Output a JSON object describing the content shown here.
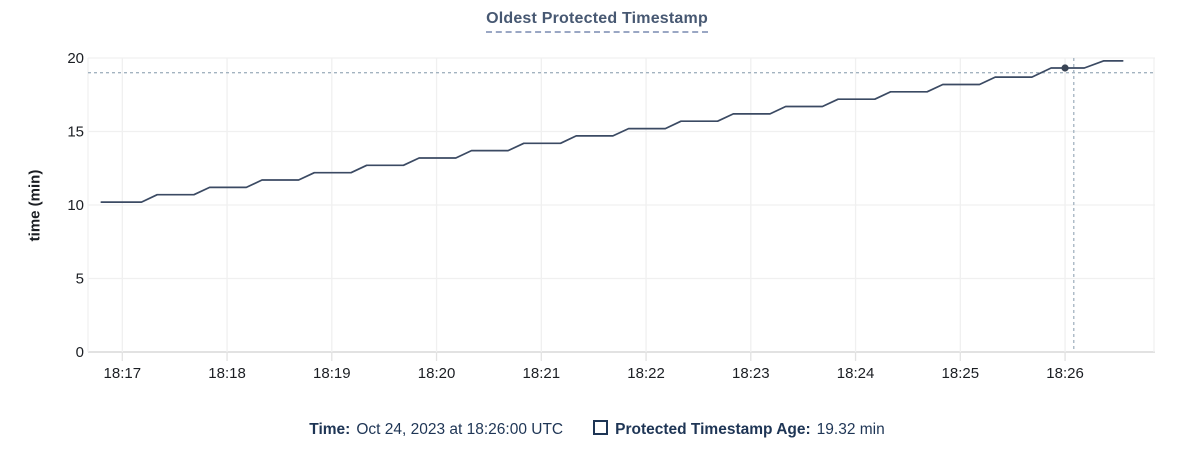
{
  "title": "Oldest Protected Timestamp",
  "tooltip": {
    "time_label": "Time:",
    "time_value": "Oct 24, 2023 at 18:26:00 UTC",
    "series_label": "Protected Timestamp Age:",
    "series_value": "19.32 min"
  },
  "colors": {
    "title": "#475872",
    "title_underline": "#9aa7c4",
    "series_line": "#3b4a63",
    "hover_dot": "#394455",
    "crosshair": "#a3b3c0",
    "grid": "#f0f0f0",
    "axis_line": "#e2e2e2",
    "axis_text": "#1b1e23",
    "legend_text": "#1e3555"
  },
  "chart_data": {
    "type": "line",
    "title": "Oldest Protected Timestamp",
    "xlabel": "",
    "ylabel": "time (min)",
    "ylim": [
      0,
      20
    ],
    "yticks": [
      0,
      5,
      10,
      15,
      20
    ],
    "xticks": [
      "18:17",
      "18:18",
      "18:19",
      "18:20",
      "18:21",
      "18:22",
      "18:23",
      "18:24",
      "18:25",
      "18:26"
    ],
    "grid": true,
    "legend_position": "bottom",
    "series": [
      {
        "name": "Protected Timestamp Age",
        "unit": "min",
        "points": [
          [
            "18:16:48",
            10.2
          ],
          [
            "18:17:11",
            10.2
          ],
          [
            "18:17:20",
            10.7
          ],
          [
            "18:17:41",
            10.7
          ],
          [
            "18:17:50",
            11.2
          ],
          [
            "18:18:11",
            11.2
          ],
          [
            "18:18:20",
            11.7
          ],
          [
            "18:18:41",
            11.7
          ],
          [
            "18:18:50",
            12.2
          ],
          [
            "18:19:11",
            12.2
          ],
          [
            "18:19:20",
            12.7
          ],
          [
            "18:19:41",
            12.7
          ],
          [
            "18:19:50",
            13.2
          ],
          [
            "18:20:11",
            13.2
          ],
          [
            "18:20:20",
            13.7
          ],
          [
            "18:20:41",
            13.7
          ],
          [
            "18:20:50",
            14.2
          ],
          [
            "18:21:11",
            14.2
          ],
          [
            "18:21:20",
            14.7
          ],
          [
            "18:21:41",
            14.7
          ],
          [
            "18:21:50",
            15.2
          ],
          [
            "18:22:11",
            15.2
          ],
          [
            "18:22:20",
            15.7
          ],
          [
            "18:22:41",
            15.7
          ],
          [
            "18:22:50",
            16.2
          ],
          [
            "18:23:11",
            16.2
          ],
          [
            "18:23:20",
            16.7
          ],
          [
            "18:23:41",
            16.7
          ],
          [
            "18:23:50",
            17.2
          ],
          [
            "18:24:11",
            17.2
          ],
          [
            "18:24:20",
            17.7
          ],
          [
            "18:24:41",
            17.7
          ],
          [
            "18:24:50",
            18.2
          ],
          [
            "18:25:11",
            18.2
          ],
          [
            "18:25:20",
            18.7
          ],
          [
            "18:25:41",
            18.7
          ],
          [
            "18:25:52",
            19.32
          ],
          [
            "18:26:11",
            19.32
          ],
          [
            "18:26:22",
            19.8
          ],
          [
            "18:26:33",
            19.8
          ]
        ]
      }
    ],
    "hover": {
      "snap_time": "18:26:00",
      "snap_value": 19.32,
      "mouse_time": "18:26:05",
      "mouse_value": 19.0
    }
  }
}
